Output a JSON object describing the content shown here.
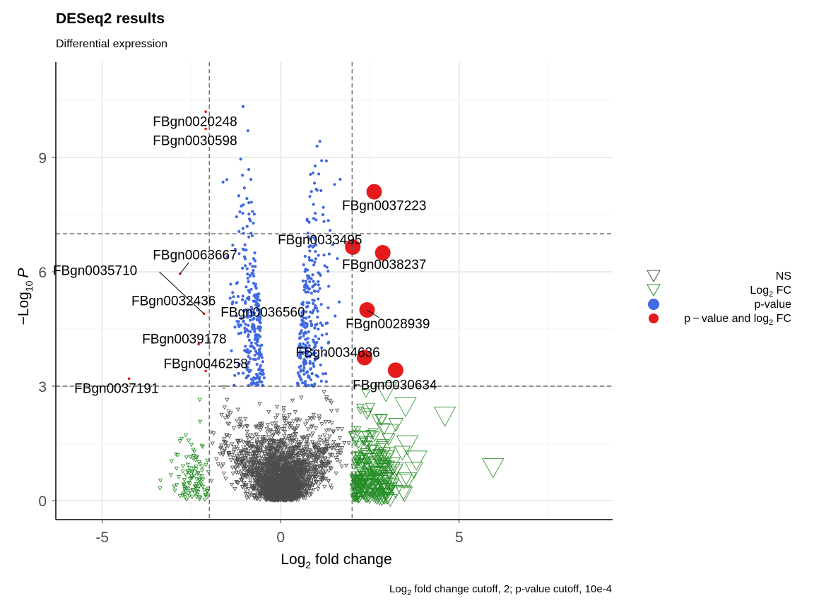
{
  "title": "DESeq2 results",
  "subtitle": "Differential expression",
  "caption": {
    "prefix": "Log",
    "sub": "2",
    "suffix": " fold change cutoff, 2; p-value cutoff, 10e-4"
  },
  "colors": {
    "NS": "#4d4d4d",
    "Log2FC": "#228b22",
    "pvalue": "#4169e1",
    "both": "#e41a1c",
    "cutoff_line": "#555555",
    "grid": "#ebebeb"
  },
  "chart_data": {
    "type": "scatter",
    "title": "DESeq2 results",
    "subtitle": "Differential expression",
    "xlabel": {
      "main": "Log",
      "sub": "2",
      "rest": " fold change"
    },
    "ylabel": {
      "pre": "−Log",
      "sub": "10",
      "italic": "P"
    },
    "xlim": [
      -6.3,
      9.3
    ],
    "ylim": [
      -0.5,
      11.5
    ],
    "x_ticks": [
      -5,
      0,
      5
    ],
    "x_tick_labels": [
      "-5",
      "0",
      "5"
    ],
    "y_ticks": [
      0,
      3,
      6,
      9
    ],
    "y_tick_labels": [
      "0",
      "3",
      "6",
      "9"
    ],
    "grid": true,
    "cutoffs": {
      "x": [
        -2,
        2
      ],
      "y": [
        3,
        7
      ]
    },
    "legend": {
      "position": "right",
      "items": [
        {
          "key": "NS",
          "label": "NS",
          "shape": "triangle-down-open",
          "color": "#4d4d4d"
        },
        {
          "key": "Log2FC",
          "label_main": "Log",
          "label_sub": "2",
          "label_rest": " FC",
          "shape": "triangle-down-open",
          "color": "#228b22"
        },
        {
          "key": "pvalue",
          "label": "p-value",
          "shape": "circle",
          "color": "#4169e1"
        },
        {
          "key": "both",
          "label_main": "p − value and log",
          "label_sub": "2",
          "label_rest": " FC",
          "shape": "circle",
          "color": "#e41a1c"
        }
      ]
    },
    "labeled_points": [
      {
        "name": "FBgn0020248",
        "x": -2.1,
        "y": 10.2,
        "group": "both_small",
        "label_x": -2.4,
        "label_y": 9.95
      },
      {
        "name": "FBgn0030598",
        "x": -2.1,
        "y": 9.75,
        "group": "both_small",
        "label_x": -2.4,
        "label_y": 9.45
      },
      {
        "name": "FBgn0037223",
        "x": 2.62,
        "y": 8.1,
        "group": "both",
        "label_x": 2.9,
        "label_y": 7.75
      },
      {
        "name": "FBgn0033495",
        "x": 2.02,
        "y": 6.65,
        "group": "both",
        "label_x": 1.1,
        "label_y": 6.85
      },
      {
        "name": "FBgn0038237",
        "x": 2.86,
        "y": 6.5,
        "group": "both",
        "label_x": 2.9,
        "label_y": 6.2
      },
      {
        "name": "FBgn0063667",
        "x": -2.82,
        "y": 5.95,
        "group": "both_small",
        "label_x": -2.4,
        "label_y": 6.45,
        "arrow": true
      },
      {
        "name": "FBgn0035710",
        "x": -3.4,
        "y": 6.0,
        "group": "label_only",
        "label_x": -5.2,
        "label_y": 6.05
      },
      {
        "name": "FBgn0032436",
        "x": -2.3,
        "y": 5.2,
        "group": "both_small",
        "label_x": -3.0,
        "label_y": 5.25
      },
      {
        "name": "FBgn0036560",
        "x": -2.15,
        "y": 4.9,
        "group": "both_small",
        "label_x": -0.5,
        "label_y": 4.95,
        "arrow_from": [
          -3.4,
          6.0
        ]
      },
      {
        "name": "FBgn0028939",
        "x": 2.42,
        "y": 5.0,
        "group": "both",
        "label_x": 3.0,
        "label_y": 4.65,
        "arrow": true
      },
      {
        "name": "FBgn0039178",
        "x": -2.3,
        "y": 4.1,
        "group": "both_small",
        "label_x": -2.7,
        "label_y": 4.25
      },
      {
        "name": "FBgn0034636",
        "x": 2.35,
        "y": 3.75,
        "group": "both",
        "label_x": 1.6,
        "label_y": 3.9
      },
      {
        "name": "FBgn0030634",
        "x": 3.22,
        "y": 3.42,
        "group": "both",
        "label_x": 3.2,
        "label_y": 3.05
      },
      {
        "name": "FBgn0046258",
        "x": -2.1,
        "y": 3.4,
        "group": "both_small",
        "label_x": -2.1,
        "label_y": 3.6
      },
      {
        "name": "FBgn0037191",
        "x": -4.25,
        "y": 3.2,
        "group": "both_small",
        "label_x": -4.6,
        "label_y": 2.95
      }
    ]
  }
}
